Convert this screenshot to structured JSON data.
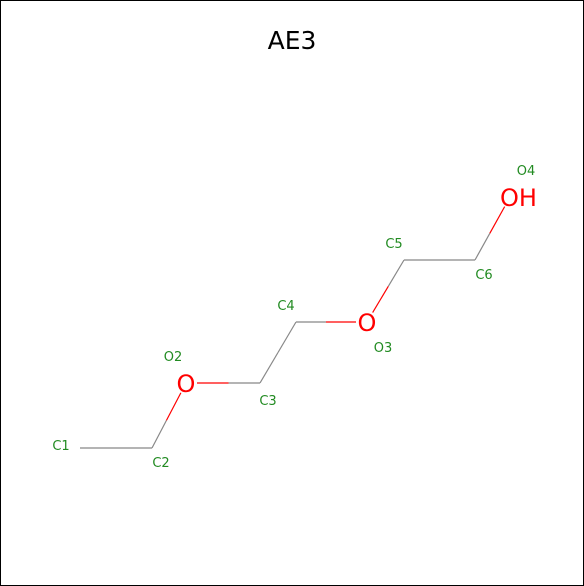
{
  "title": "AE3",
  "colors": {
    "bond": "#888888",
    "oxygen": "#ff0000",
    "label": "#228b22",
    "frame": "#000000"
  },
  "atoms": [
    {
      "id": "C1",
      "element": "C",
      "symbol": ""
    },
    {
      "id": "C2",
      "element": "C",
      "symbol": ""
    },
    {
      "id": "O2",
      "element": "O",
      "symbol": "O"
    },
    {
      "id": "C3",
      "element": "C",
      "symbol": ""
    },
    {
      "id": "C4",
      "element": "C",
      "symbol": ""
    },
    {
      "id": "O3",
      "element": "O",
      "symbol": "O"
    },
    {
      "id": "C5",
      "element": "C",
      "symbol": ""
    },
    {
      "id": "C6",
      "element": "C",
      "symbol": ""
    },
    {
      "id": "O4",
      "element": "O",
      "symbol": "OH"
    }
  ],
  "bonds": [
    [
      "C1",
      "C2"
    ],
    [
      "C2",
      "O2"
    ],
    [
      "O2",
      "C3"
    ],
    [
      "C3",
      "C4"
    ],
    [
      "C4",
      "O3"
    ],
    [
      "O3",
      "C5"
    ],
    [
      "C5",
      "C6"
    ],
    [
      "C6",
      "O4"
    ]
  ]
}
